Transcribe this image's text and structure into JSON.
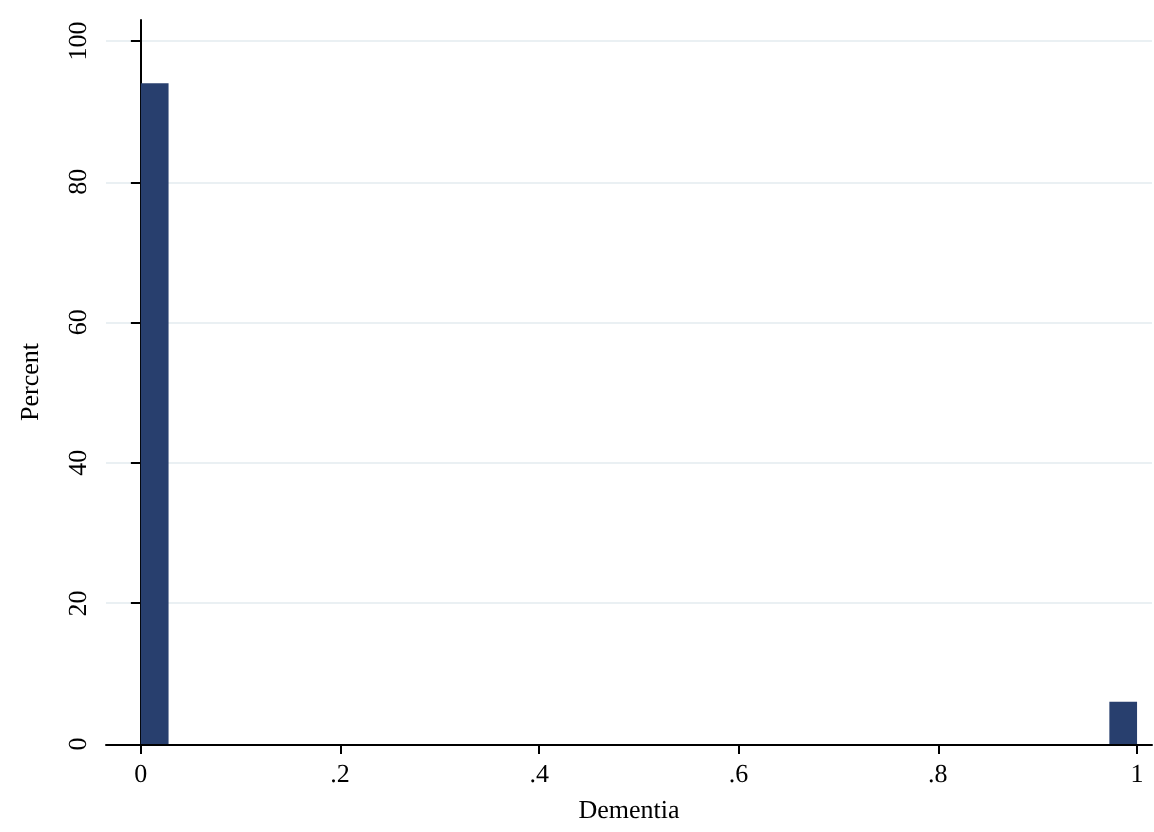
{
  "chart_data": {
    "type": "histogram",
    "xlabel": "Dementia",
    "ylabel": "Percent",
    "bins": [
      0,
      0.0278,
      0.0556,
      0.0833,
      0.1111,
      0.1389,
      0.1667,
      0.1944,
      0.2222,
      0.25,
      0.2778,
      0.3056,
      0.3333,
      0.3611,
      0.3889,
      0.4167,
      0.4444,
      0.4722,
      0.5,
      0.5278,
      0.5556,
      0.5833,
      0.6111,
      0.6389,
      0.6667,
      0.6944,
      0.7222,
      0.75,
      0.7778,
      0.8056,
      0.8333,
      0.8611,
      0.8889,
      0.9167,
      0.9444,
      0.9722,
      1
    ],
    "values": [
      94,
      0,
      0,
      0,
      0,
      0,
      0,
      0,
      0,
      0,
      0,
      0,
      0,
      0,
      0,
      0,
      0,
      0,
      0,
      0,
      0,
      0,
      0,
      0,
      0,
      0,
      0,
      0,
      0,
      0,
      0,
      0,
      0,
      0,
      0,
      6
    ],
    "color": "#283f6e",
    "xlim": [
      -0.035,
      1.015
    ],
    "ylim": [
      0,
      103
    ],
    "xticks": [
      0,
      {
        "value": 0.2,
        "label": ".2"
      },
      {
        "value": 0.4,
        "label": ".4"
      },
      {
        "value": 0.6,
        "label": ".6"
      },
      {
        "value": 0.8,
        "label": ".8"
      },
      1
    ],
    "yticks": [
      0,
      20,
      40,
      60,
      80,
      100
    ],
    "grid": "y"
  }
}
